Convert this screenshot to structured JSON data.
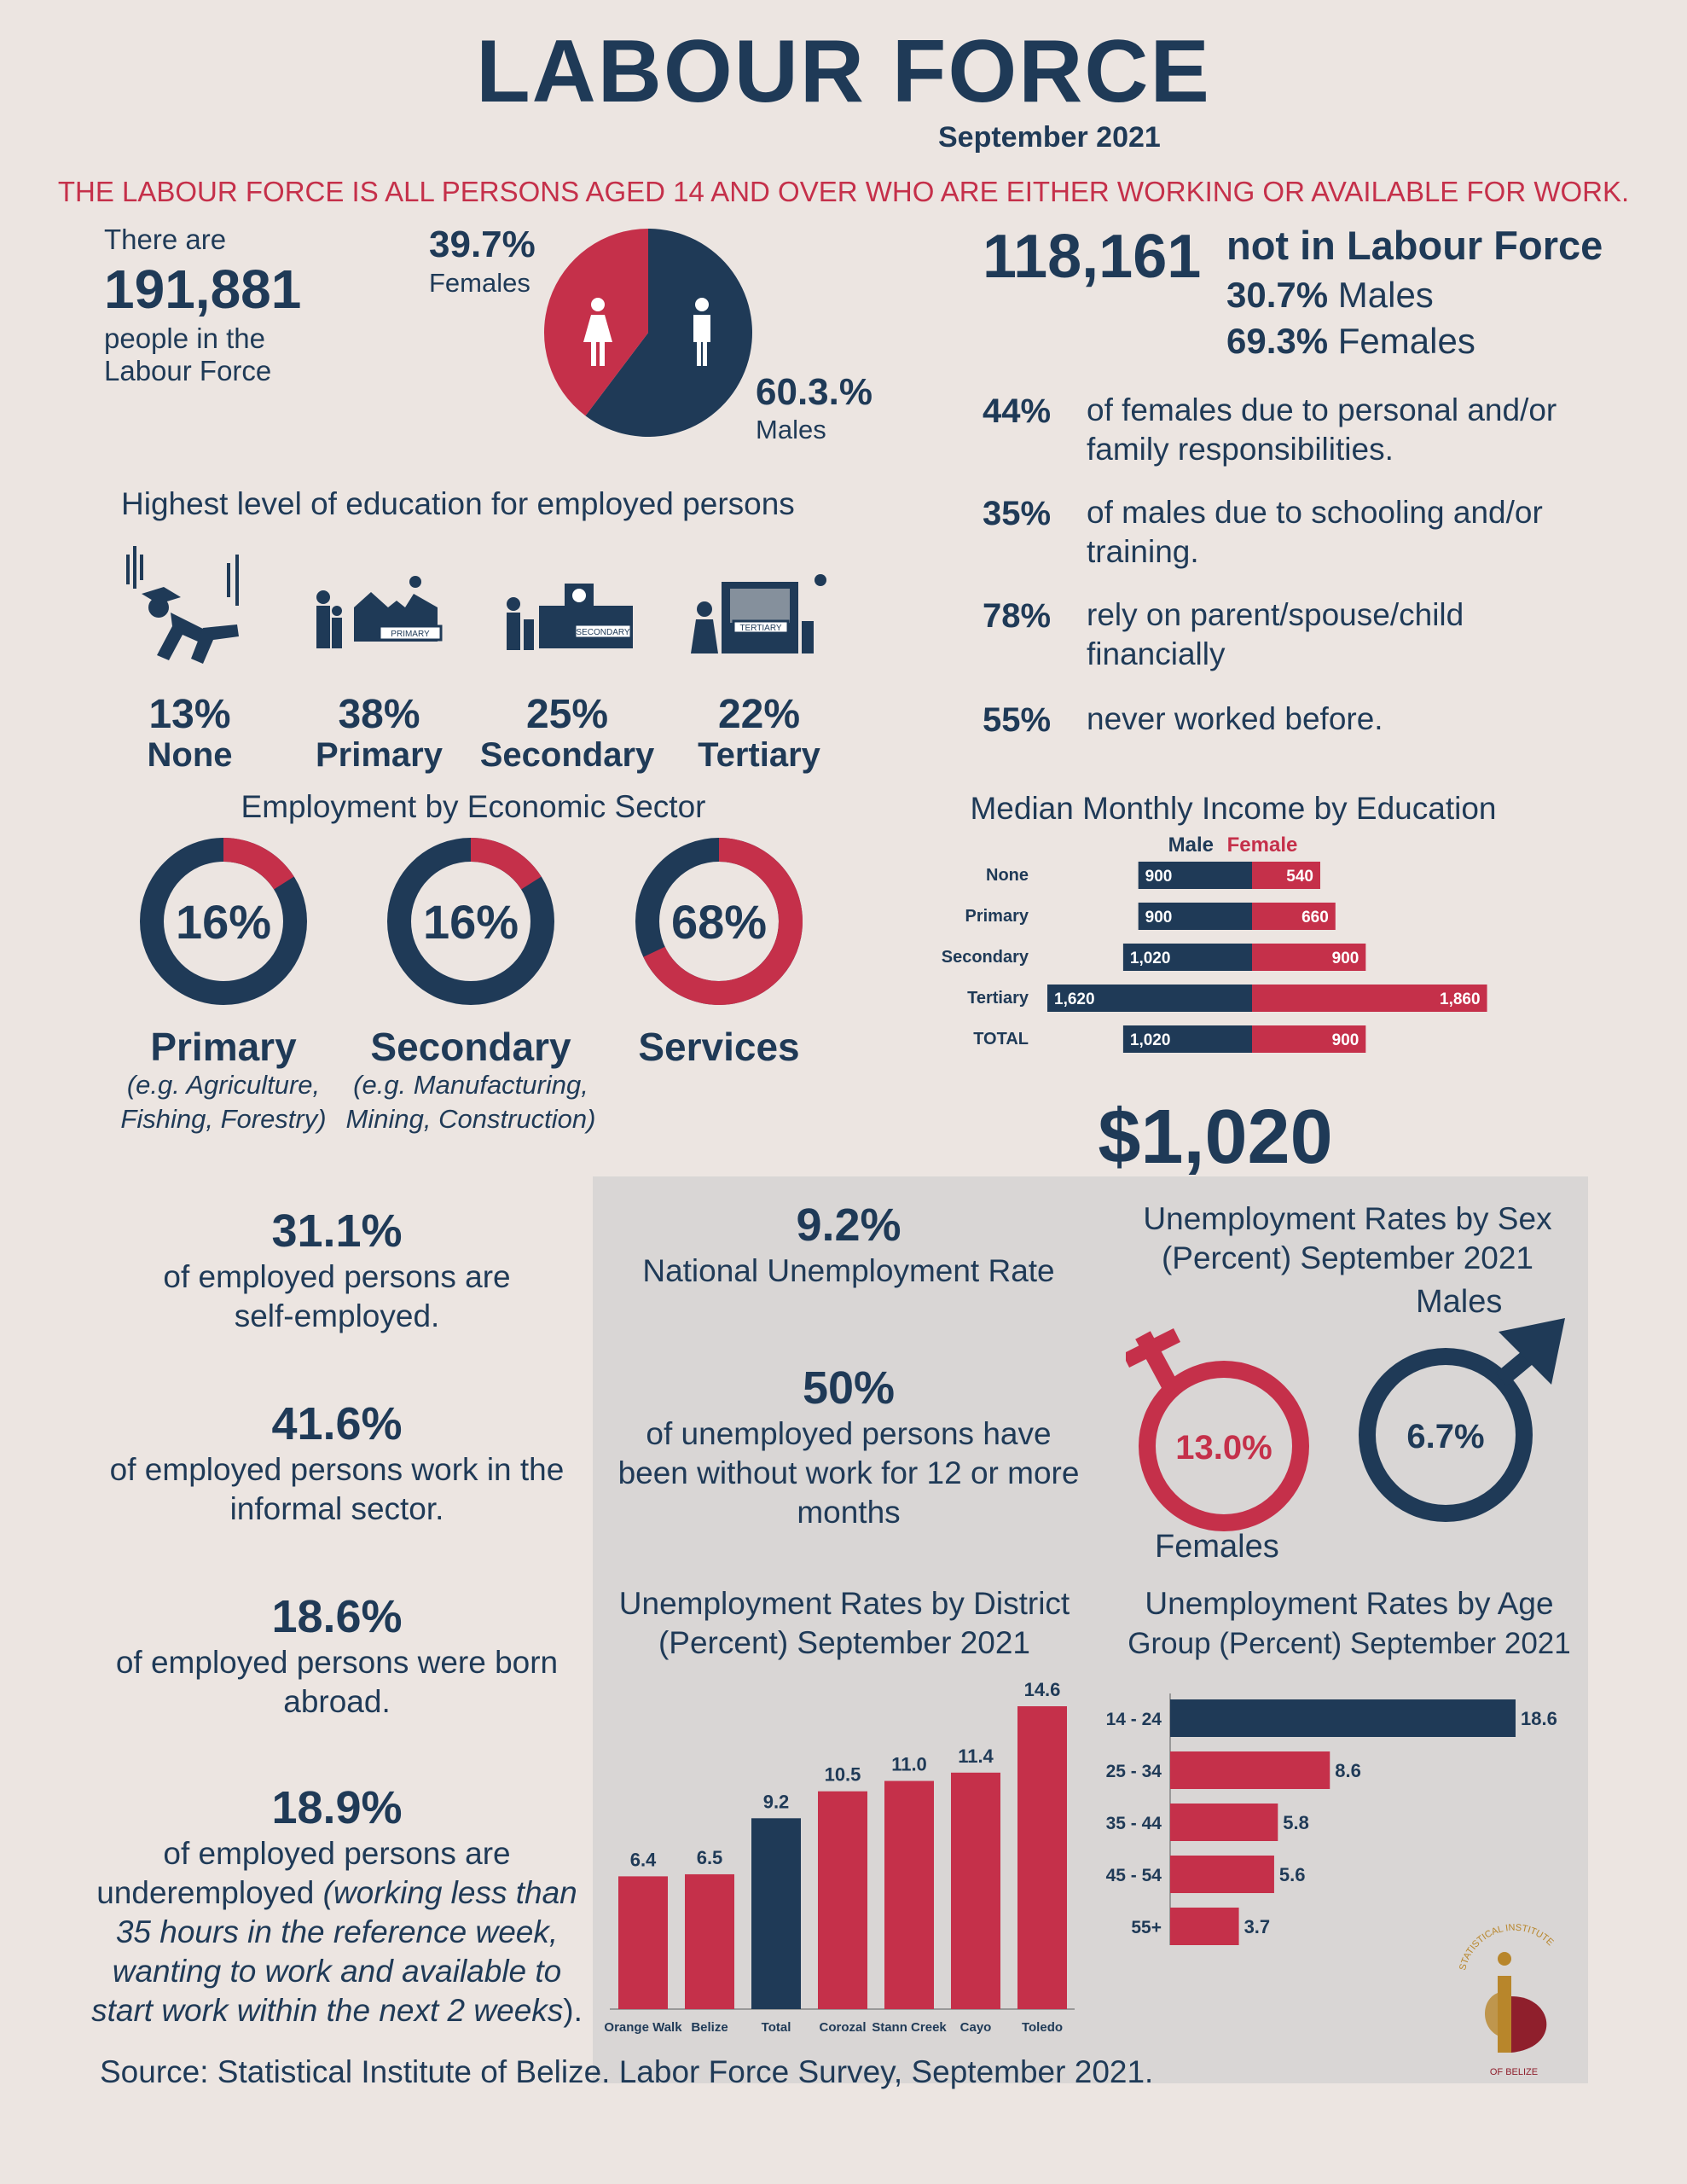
{
  "header": {
    "title": "LABOUR FORCE",
    "subtitle": "September 2021",
    "definition": "THE LABOUR FORCE IS ALL PERSONS AGED 14 AND OVER WHO ARE EITHER WORKING OR AVAILABLE FOR WORK."
  },
  "labour_force": {
    "intro": "There are",
    "total": "191,881",
    "line1": "people in the",
    "line2": "Labour Force",
    "females_pct": "39.7%",
    "females_label": "Females",
    "males_pct": "60.3.%",
    "males_label": "Males"
  },
  "not_in_lf": {
    "total": "118,161",
    "label": "not in Labour Force",
    "males_pct": "30.7%",
    "males_label": "Males",
    "females_pct": "69.3%",
    "females_label": "Females",
    "reasons": [
      {
        "pct": "44%",
        "line1": "of females due to personal and/or",
        "line2": "family responsibilities."
      },
      {
        "pct": "35%",
        "line1": "of males due to schooling and/or",
        "line2": "training."
      },
      {
        "pct": "78%",
        "line1": "rely on parent/spouse/child",
        "line2": "financially"
      },
      {
        "pct": "55%",
        "line1": "never worked before.",
        "line2": ""
      }
    ]
  },
  "education": {
    "heading": "Highest level of education for employed persons",
    "items": [
      {
        "pct": "13%",
        "label": "None",
        "icon": "falling-student-icon",
        "sign": ""
      },
      {
        "pct": "38%",
        "label": "Primary",
        "icon": "primary-school-icon",
        "sign": "PRIMARY"
      },
      {
        "pct": "25%",
        "label": "Secondary",
        "icon": "secondary-school-icon",
        "sign": "SECONDARY"
      },
      {
        "pct": "22%",
        "label": "Tertiary",
        "icon": "tertiary-school-icon",
        "sign": "TERTIARY"
      }
    ]
  },
  "sectors": {
    "heading": "Employment by Economic Sector",
    "items": [
      {
        "pct": "16%",
        "value": 16,
        "name": "Primary",
        "note1": "(e.g. Agriculture,",
        "note2": "Fishing, Forestry)"
      },
      {
        "pct": "16%",
        "value": 16,
        "name": "Secondary",
        "note1": "(e.g. Manufacturing,",
        "note2": "Mining, Construction)"
      },
      {
        "pct": "68%",
        "value": 68,
        "name": "Services",
        "note1": "",
        "note2": ""
      }
    ]
  },
  "income": {
    "median_total": "$1,020"
  },
  "employed_stats": [
    {
      "big": "31.1%",
      "line1": "of employed persons are",
      "line2": "self-employed.",
      "line3": "",
      "line4": "",
      "line5": "",
      "line6": ""
    },
    {
      "big": "41.6%",
      "line1": "of employed persons work in the",
      "line2": "informal sector.",
      "line3": "",
      "line4": "",
      "line5": "",
      "line6": ""
    },
    {
      "big": "18.6%",
      "line1": "of employed persons were born",
      "line2": "abroad.",
      "line3": "",
      "line4": "",
      "line5": "",
      "line6": ""
    }
  ],
  "underemployed": {
    "big": "18.9%",
    "line1": "of employed persons are",
    "line2a": "underemployed ",
    "line2b": "(working less than",
    "line3": "35 hours in the reference week,",
    "line4": "wanting to work and available to",
    "line5a": "start work within the next 2 weeks",
    "line5b": ")."
  },
  "unemployment": {
    "national_pct": "9.2%",
    "national_label": "National Unemployment Rate",
    "longterm_pct": "50%",
    "longterm_line1": "of unemployed persons  have",
    "longterm_line2": "been without work for 12 or more",
    "longterm_line3": "months",
    "by_sex_title1": "Unemployment Rates by Sex",
    "by_sex_title2": "(Percent) September 2021",
    "females_pct": "13.0%",
    "females_label": "Females",
    "males_pct": "6.7%",
    "males_label": "Males"
  },
  "source": "Source: Statistical Institute of Belize. Labor Force Survey, September 2021.",
  "logo": {
    "text_top": "STATISTICAL INSTITUTE",
    "text_bottom": "OF BELIZE",
    "color": "#b8862b"
  },
  "colors": {
    "navy": "#1f3a57",
    "red": "#c5304a",
    "background": "#ece5e1",
    "panel": "#d9d6d5"
  },
  "chart_data": [
    {
      "type": "pie",
      "title": "",
      "categories": [
        "Females",
        "Males"
      ],
      "values": [
        39.7,
        60.3
      ]
    },
    {
      "type": "bar",
      "orientation": "horizontal-diverging",
      "title": "Median Monthly Income by Education",
      "categories": [
        "None",
        "Primary",
        "Secondary",
        "Tertiary",
        "TOTAL"
      ],
      "series": [
        {
          "name": "Male",
          "values": [
            900,
            900,
            1020,
            1620,
            1020
          ],
          "labels": [
            "900",
            "900",
            "1,020",
            "1,620",
            "1,020"
          ],
          "color": "#1f3a57"
        },
        {
          "name": "Female",
          "values": [
            540,
            660,
            900,
            1860,
            900
          ],
          "labels": [
            "540",
            "660",
            "900",
            "1,860",
            "900"
          ],
          "color": "#c5304a"
        }
      ],
      "legend": "top"
    },
    {
      "type": "bar",
      "title": "Unemployment Rates by District",
      "subtitle": "(Percent) September 2021",
      "categories": [
        "Orange Walk",
        "Belize",
        "Total",
        "Corozal",
        "Stann Creek",
        "Cayo",
        "Toledo"
      ],
      "values": [
        6.4,
        6.5,
        9.2,
        10.5,
        11.0,
        11.4,
        14.6
      ],
      "labels": [
        "6.4",
        "6.5",
        "9.2",
        "10.5",
        "11.0",
        "11.4",
        "14.6"
      ],
      "highlight": "Total",
      "ylim": [
        0,
        14.6
      ]
    },
    {
      "type": "bar",
      "orientation": "horizontal",
      "title": "Unemployment Rates by Age",
      "subtitle": "Group (Percent) September 2021",
      "categories": [
        "14 - 24",
        "25 - 34",
        "35 - 44",
        "45 - 54",
        "55+"
      ],
      "values": [
        18.6,
        8.6,
        5.8,
        5.6,
        3.7
      ],
      "labels": [
        "18.6",
        "8.6",
        "5.8",
        "5.6",
        "3.7"
      ],
      "xlim": [
        0,
        18.6
      ]
    }
  ]
}
